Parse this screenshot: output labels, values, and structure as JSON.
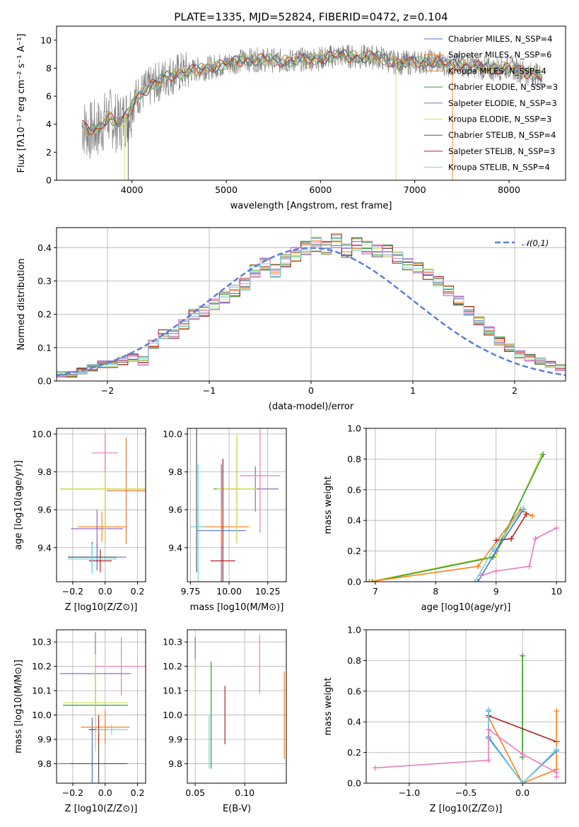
{
  "figure": {
    "title": "PLATE=1335, MJD=52824, FIBERID=0472, z=0.104"
  },
  "chart_data": [
    {
      "id": "spectrum",
      "type": "line",
      "xlabel": "wavelength [Angstrom, rest frame]",
      "ylabel": "Flux [fλ10⁻¹⁷ erg cm⁻² s⁻¹ A⁻¹]",
      "xlim": [
        3200,
        8600
      ],
      "ylim": [
        0,
        11
      ],
      "xticks": [
        4000,
        5000,
        6000,
        7000,
        8000
      ],
      "yticks": [
        0,
        2,
        4,
        6,
        8,
        10
      ],
      "grid": false,
      "legend_position": "right",
      "data": {
        "x": [
          3470,
          3550,
          3650,
          3750,
          3850,
          3950,
          4050,
          4200,
          4400,
          4600,
          4800,
          5000,
          5200,
          5400,
          5600,
          5800,
          6000,
          6200,
          6400,
          6600,
          6800,
          7000,
          7200,
          7400,
          7600,
          7800,
          8000,
          8200,
          8350
        ],
        "y": [
          3.9,
          3.5,
          3.7,
          4.6,
          4.0,
          4.6,
          6.0,
          6.7,
          7.5,
          7.8,
          8.0,
          8.3,
          8.6,
          8.6,
          8.5,
          8.6,
          8.7,
          8.9,
          8.8,
          8.8,
          8.4,
          8.4,
          8.5,
          8.2,
          8.2,
          7.9,
          8.1,
          7.6,
          7.5
        ]
      },
      "series": [
        {
          "name": "Chabrier MILES, N_SSP=4",
          "color": "#4f74c9"
        },
        {
          "name": "Salpeter MILES, N_SSP=6",
          "color": "#ff7f0e"
        },
        {
          "name": "Kroupa MILES, N_SSP=4",
          "color": "#e07b39"
        },
        {
          "name": "Chabrier ELODIE, N_SSP=3",
          "color": "#2ca02c"
        },
        {
          "name": "Salpeter ELODIE, N_SSP=3",
          "color": "#9467bd"
        },
        {
          "name": "Kroupa ELODIE, N_SSP=3",
          "color": "#d9e04f"
        },
        {
          "name": "Chabrier STELIB, N_SSP=4",
          "color": "#555555"
        },
        {
          "name": "Salpeter STELIB, N_SSP=3",
          "color": "#b22222"
        },
        {
          "name": "Kroupa STELIB, N_SSP=4",
          "color": "#6fd6e0"
        }
      ]
    },
    {
      "id": "residuals",
      "type": "bar",
      "xlabel": "(data-model)/error",
      "ylabel": "Normed distribution",
      "xlim": [
        -2.5,
        2.5
      ],
      "ylim": [
        0,
        0.46
      ],
      "xticks": [
        -2,
        -1,
        0,
        1,
        2
      ],
      "yticks": [
        0.0,
        0.1,
        0.2,
        0.3,
        0.4
      ],
      "grid": true,
      "legend_position": "top-right",
      "bin_width": 0.1,
      "bin_start": -2.5,
      "values": [
        0.02,
        0.02,
        0.03,
        0.04,
        0.05,
        0.05,
        0.06,
        0.07,
        0.06,
        0.11,
        0.14,
        0.14,
        0.17,
        0.2,
        0.21,
        0.23,
        0.25,
        0.27,
        0.29,
        0.33,
        0.35,
        0.33,
        0.36,
        0.38,
        0.4,
        0.41,
        0.4,
        0.42,
        0.39,
        0.41,
        0.4,
        0.39,
        0.39,
        0.37,
        0.35,
        0.34,
        0.32,
        0.3,
        0.27,
        0.24,
        0.21,
        0.18,
        0.15,
        0.12,
        0.1,
        0.08,
        0.07,
        0.06,
        0.05,
        0.04
      ],
      "curve": {
        "name": "𝒩(0,1)",
        "type": "gaussian",
        "mean": 0,
        "sigma": 1,
        "color": "#5b7fd6"
      }
    },
    {
      "id": "age-vs-Z",
      "type": "scatter",
      "xlabel": "Z [log10(Z/Z⊙)]",
      "ylabel": "age  [log10(age/yr)]",
      "xlim": [
        -0.3,
        0.25
      ],
      "ylim": [
        9.22,
        10.03
      ],
      "xticks": [
        -0.2,
        0.0,
        0.2
      ],
      "yticks": [
        9.4,
        9.6,
        9.8,
        10.0
      ],
      "grid": true,
      "points": [
        {
          "x": -0.05,
          "y": 9.35,
          "xerr": 0.18,
          "yerr": 0.07,
          "color": "#4f74c9"
        },
        {
          "x": -0.02,
          "y": 9.51,
          "xerr": 0.15,
          "yerr": 0.08,
          "color": "#ff7f0e"
        },
        {
          "x": 0.13,
          "y": 9.7,
          "xerr": 0.12,
          "yerr": 0.28,
          "color": "#e07b39"
        },
        {
          "x": 0.0,
          "y": 9.71,
          "xerr": 0.28,
          "yerr": 0.29,
          "color": "#2ca02c"
        },
        {
          "x": -0.05,
          "y": 9.5,
          "xerr": 0.16,
          "yerr": 0.1,
          "color": "#9467bd"
        },
        {
          "x": 0.0,
          "y": 9.71,
          "xerr": 0.28,
          "yerr": 0.29,
          "color": "#d9e04f"
        },
        {
          "x": -0.08,
          "y": 9.35,
          "xerr": 0.15,
          "yerr": 0.08,
          "color": "#555555"
        },
        {
          "x": -0.03,
          "y": 9.33,
          "xerr": 0.07,
          "yerr": 0.06,
          "color": "#b22222"
        },
        {
          "x": 0.0,
          "y": 9.9,
          "xerr": 0.08,
          "yerr": 0.1,
          "color": "#e97cbf"
        },
        {
          "x": -0.08,
          "y": 9.34,
          "xerr": 0.15,
          "yerr": 0.08,
          "color": "#6fd6e0"
        }
      ]
    },
    {
      "id": "age-vs-mass",
      "type": "scatter",
      "xlabel": "mass [log10(M/M⊙)]",
      "ylabel": "",
      "xlim": [
        9.73,
        10.37
      ],
      "ylim": [
        9.22,
        10.03
      ],
      "xticks": [
        9.75,
        10.0,
        10.25
      ],
      "yticks": [
        9.4,
        9.6,
        9.8,
        10.0
      ],
      "grid": true,
      "points": [
        {
          "x": 9.95,
          "y": 9.49,
          "xerr": 0.16,
          "yerr": 0.35,
          "color": "#4f74c9"
        },
        {
          "x": 9.95,
          "y": 9.51,
          "xerr": 0.18,
          "yerr": 0.1,
          "color": "#ff7f0e"
        },
        {
          "x": 10.05,
          "y": 9.71,
          "xerr": 0.15,
          "yerr": 0.28,
          "color": "#2ca02c"
        },
        {
          "x": 10.17,
          "y": 9.71,
          "xerr": 0.15,
          "yerr": 0.12,
          "color": "#9467bd"
        },
        {
          "x": 10.05,
          "y": 9.71,
          "xerr": 0.13,
          "yerr": 0.29,
          "color": "#d9e04f"
        },
        {
          "x": 9.79,
          "y": 9.71,
          "xerr": 0.0,
          "yerr": 0.44,
          "color": "#555555"
        },
        {
          "x": 9.96,
          "y": 9.33,
          "xerr": 0.08,
          "yerr": 0.54,
          "color": "#b22222"
        },
        {
          "x": 10.2,
          "y": 9.78,
          "xerr": 0.13,
          "yerr": 0.3,
          "color": "#e97cbf"
        },
        {
          "x": 9.8,
          "y": 9.51,
          "xerr": 0.05,
          "yerr": 0.33,
          "color": "#6fd6e0"
        }
      ]
    },
    {
      "id": "mass-weight-vs-age",
      "type": "line",
      "xlabel": "age  [log10(age/yr)]",
      "ylabel": "mass weight",
      "xlim": [
        6.85,
        10.15
      ],
      "ylim": [
        0,
        1.0
      ],
      "xticks": [
        7,
        8,
        9,
        10
      ],
      "yticks": [
        0.0,
        0.2,
        0.4,
        0.6,
        0.8,
        1.0
      ],
      "grid": true,
      "series": [
        {
          "color": "#d9e04f",
          "x": [
            6.9,
            9.0,
            9.75
          ],
          "y": [
            0.0,
            0.17,
            0.83
          ]
        },
        {
          "color": "#2ca02c",
          "x": [
            6.95,
            8.95,
            9.78
          ],
          "y": [
            0.0,
            0.16,
            0.83
          ]
        },
        {
          "color": "#ff7f0e",
          "x": [
            6.9,
            8.7,
            9.4,
            9.6
          ],
          "y": [
            0.0,
            0.1,
            0.47,
            0.43
          ]
        },
        {
          "color": "#b22222",
          "x": [
            9.0,
            9.25,
            9.5
          ],
          "y": [
            0.27,
            0.28,
            0.44
          ]
        },
        {
          "color": "#4f74c9",
          "x": [
            8.7,
            9.0,
            9.45
          ],
          "y": [
            0.0,
            0.2,
            0.47
          ]
        },
        {
          "color": "#6fd6e0",
          "x": [
            8.65,
            8.95,
            9.45
          ],
          "y": [
            0.0,
            0.21,
            0.48
          ]
        },
        {
          "color": "#e97cbf",
          "x": [
            8.75,
            9.0,
            9.55,
            9.65,
            10.0
          ],
          "y": [
            0.04,
            0.07,
            0.1,
            0.28,
            0.35
          ]
        }
      ]
    },
    {
      "id": "mass-vs-Z",
      "type": "scatter",
      "xlabel": "Z [log10(Z/Z⊙)]",
      "ylabel": "mass [log10(M/M⊙)]",
      "xlim": [
        -0.3,
        0.25
      ],
      "ylim": [
        9.72,
        10.35
      ],
      "xticks": [
        -0.2,
        0.0,
        0.2
      ],
      "yticks": [
        9.8,
        9.9,
        10.0,
        10.1,
        10.2,
        10.3
      ],
      "grid": true,
      "points": [
        {
          "x": -0.08,
          "y": 9.8,
          "xerr": 0.21,
          "yerr": 0.19,
          "color": "#4f74c9"
        },
        {
          "x": 0.0,
          "y": 9.95,
          "xerr": 0.15,
          "yerr": 0.07,
          "color": "#ff7f0e"
        },
        {
          "x": -0.06,
          "y": 10.04,
          "xerr": 0.2,
          "yerr": 0.17,
          "color": "#2ca02c"
        },
        {
          "x": -0.06,
          "y": 10.17,
          "xerr": 0.22,
          "yerr": 0.17,
          "color": "#9467bd"
        },
        {
          "x": -0.06,
          "y": 10.05,
          "xerr": 0.2,
          "yerr": 0.2,
          "color": "#d9e04f"
        },
        {
          "x": -0.04,
          "y": 9.8,
          "xerr": 0.18,
          "yerr": 0.08,
          "color": "#555555"
        },
        {
          "x": -0.04,
          "y": 9.94,
          "xerr": 0.06,
          "yerr": 0.06,
          "color": "#b22222"
        },
        {
          "x": 0.1,
          "y": 10.2,
          "xerr": 0.16,
          "yerr": 0.12,
          "color": "#e97cbf"
        },
        {
          "x": 0.04,
          "y": 9.94,
          "xerr": 0.1,
          "yerr": 0.02,
          "color": "#6fd6e0"
        }
      ]
    },
    {
      "id": "mass-vs-EBV",
      "type": "scatter",
      "xlabel": "E(B-V)",
      "ylabel": "",
      "xlim": [
        0.042,
        0.142
      ],
      "ylim": [
        9.72,
        10.35
      ],
      "xticks": [
        0.05,
        0.1
      ],
      "yticks": [
        9.8,
        9.9,
        10.0,
        10.1,
        10.2,
        10.3
      ],
      "grid": true,
      "points": [
        {
          "x": 0.05,
          "y": 10.23,
          "yerr": 0.09,
          "color": "#9467bd"
        },
        {
          "x": 0.05,
          "y": 10.07,
          "yerr": 0.16,
          "color": "#d9e04f"
        },
        {
          "x": 0.064,
          "y": 9.89,
          "yerr": 0.11,
          "color": "#6fd6e0"
        },
        {
          "x": 0.066,
          "y": 10.0,
          "yerr": 0.22,
          "color": "#2ca02c"
        },
        {
          "x": 0.08,
          "y": 10.0,
          "yerr": 0.12,
          "color": "#b22222"
        },
        {
          "x": 0.115,
          "y": 10.21,
          "yerr": 0.12,
          "color": "#e97cbf"
        },
        {
          "x": 0.14,
          "y": 10.0,
          "yerr": 0.18,
          "color": "#ff7f0e"
        }
      ]
    },
    {
      "id": "mass-weight-vs-Z",
      "type": "line",
      "xlabel": "Z [log10(Z/Z⊙)]",
      "ylabel": "mass weight",
      "xlim": [
        -1.38,
        0.38
      ],
      "ylim": [
        0,
        1.0
      ],
      "xticks": [
        -1.0,
        -0.5,
        0.0
      ],
      "yticks": [
        0.0,
        0.2,
        0.4,
        0.6,
        0.8,
        1.0
      ],
      "grid": true,
      "series": [
        {
          "color": "#d9e04f",
          "x": [
            0.0,
            0.0
          ],
          "y": [
            0.17,
            0.83
          ]
        },
        {
          "color": "#2ca02c",
          "x": [
            0.0,
            0.0
          ],
          "y": [
            0.17,
            0.83
          ]
        },
        {
          "color": "#b22222",
          "x": [
            -0.3,
            0.3,
            0.3
          ],
          "y": [
            0.44,
            0.27,
            0.27
          ]
        },
        {
          "color": "#ff7f0e",
          "x": [
            -0.3,
            0.0,
            0.3,
            0.3
          ],
          "y": [
            0.43,
            0.0,
            0.09,
            0.47
          ]
        },
        {
          "color": "#4f74c9",
          "x": [
            -0.3,
            -0.3,
            0.0,
            0.3
          ],
          "y": [
            0.47,
            0.3,
            0.0,
            0.21
          ]
        },
        {
          "color": "#6fd6e0",
          "x": [
            -0.3,
            -0.3,
            0.0,
            0.3
          ],
          "y": [
            0.48,
            0.29,
            0.0,
            0.22
          ]
        },
        {
          "color": "#e97cbf",
          "x": [
            -1.3,
            -0.3,
            -0.3,
            0.0,
            0.3,
            0.3
          ],
          "y": [
            0.1,
            0.15,
            0.35,
            0.19,
            0.07,
            0.04
          ]
        }
      ]
    }
  ]
}
